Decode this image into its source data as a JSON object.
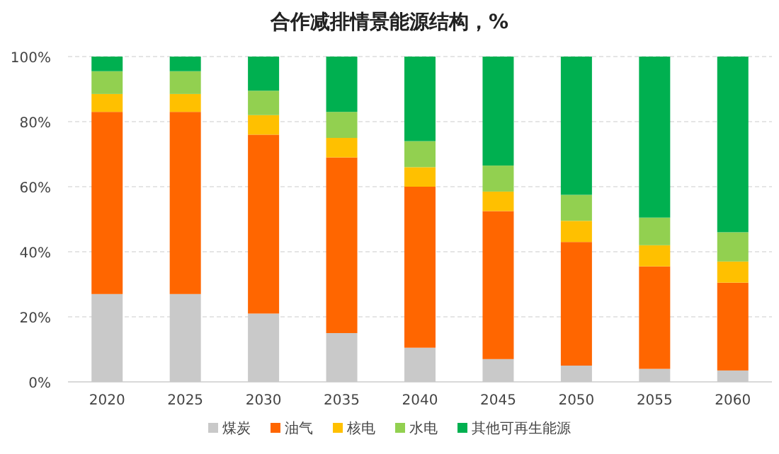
{
  "chart_data": {
    "type": "bar",
    "stacked": true,
    "title": "合作减排情景能源结构，%",
    "categories": [
      "2020",
      "2025",
      "2030",
      "2035",
      "2040",
      "2045",
      "2050",
      "2055",
      "2060"
    ],
    "series": [
      {
        "name": "煤炭",
        "color": "#c9c9c9",
        "values": [
          27,
          27,
          21,
          15,
          10.5,
          7,
          5,
          4,
          3.5
        ]
      },
      {
        "name": "油气",
        "color": "#ff6600",
        "values": [
          56,
          56,
          55,
          54,
          49.5,
          45.5,
          38,
          31.5,
          27
        ]
      },
      {
        "name": "核电",
        "color": "#ffc000",
        "values": [
          5.5,
          5.5,
          6,
          6,
          6,
          6,
          6.5,
          6.5,
          6.5
        ]
      },
      {
        "name": "水电",
        "color": "#92d050",
        "values": [
          7,
          7,
          7.5,
          8,
          8,
          8,
          8,
          8.5,
          9
        ]
      },
      {
        "name": "其他可再生能源",
        "color": "#00b050",
        "values": [
          4.5,
          4.5,
          10.5,
          17,
          26,
          33.5,
          42.5,
          49.5,
          54
        ]
      }
    ],
    "ylim": [
      0,
      100
    ],
    "yticks": [
      {
        "value": 0,
        "label": "0%"
      },
      {
        "value": 20,
        "label": "20%"
      },
      {
        "value": 40,
        "label": "40%"
      },
      {
        "value": 60,
        "label": "60%"
      },
      {
        "value": 80,
        "label": "80%"
      },
      {
        "value": 100,
        "label": "100%"
      }
    ],
    "grid": "y",
    "legend": "bottom"
  }
}
